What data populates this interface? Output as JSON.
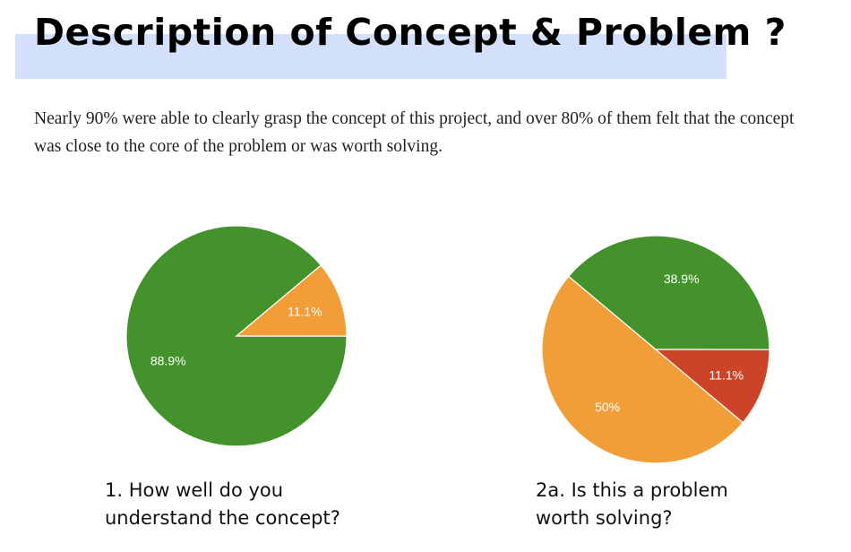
{
  "page": {
    "title": "Description of Concept & Problem ?",
    "description": "Nearly 90% were able to clearly grasp the concept of this project, and over 80% of them felt that the concept was close to the core of the problem or was worth solving."
  },
  "chart_data": [
    {
      "type": "pie",
      "title_lines": [
        "1. How well do you",
        "understand the concept?"
      ],
      "slices": [
        {
          "label": "88.9%",
          "value": 88.9,
          "color": "#43922b"
        },
        {
          "label": "11.1%",
          "value": 11.1,
          "color": "#f19d38"
        }
      ]
    },
    {
      "type": "pie",
      "title_lines": [
        "2a. Is this a problem",
        "worth solving?"
      ],
      "slices": [
        {
          "label": "38.9%",
          "value": 38.9,
          "color": "#43922b"
        },
        {
          "label": "11.1%",
          "value": 11.1,
          "color": "#cc4428"
        },
        {
          "label": "50%",
          "value": 50,
          "color": "#f19d38"
        }
      ]
    }
  ]
}
